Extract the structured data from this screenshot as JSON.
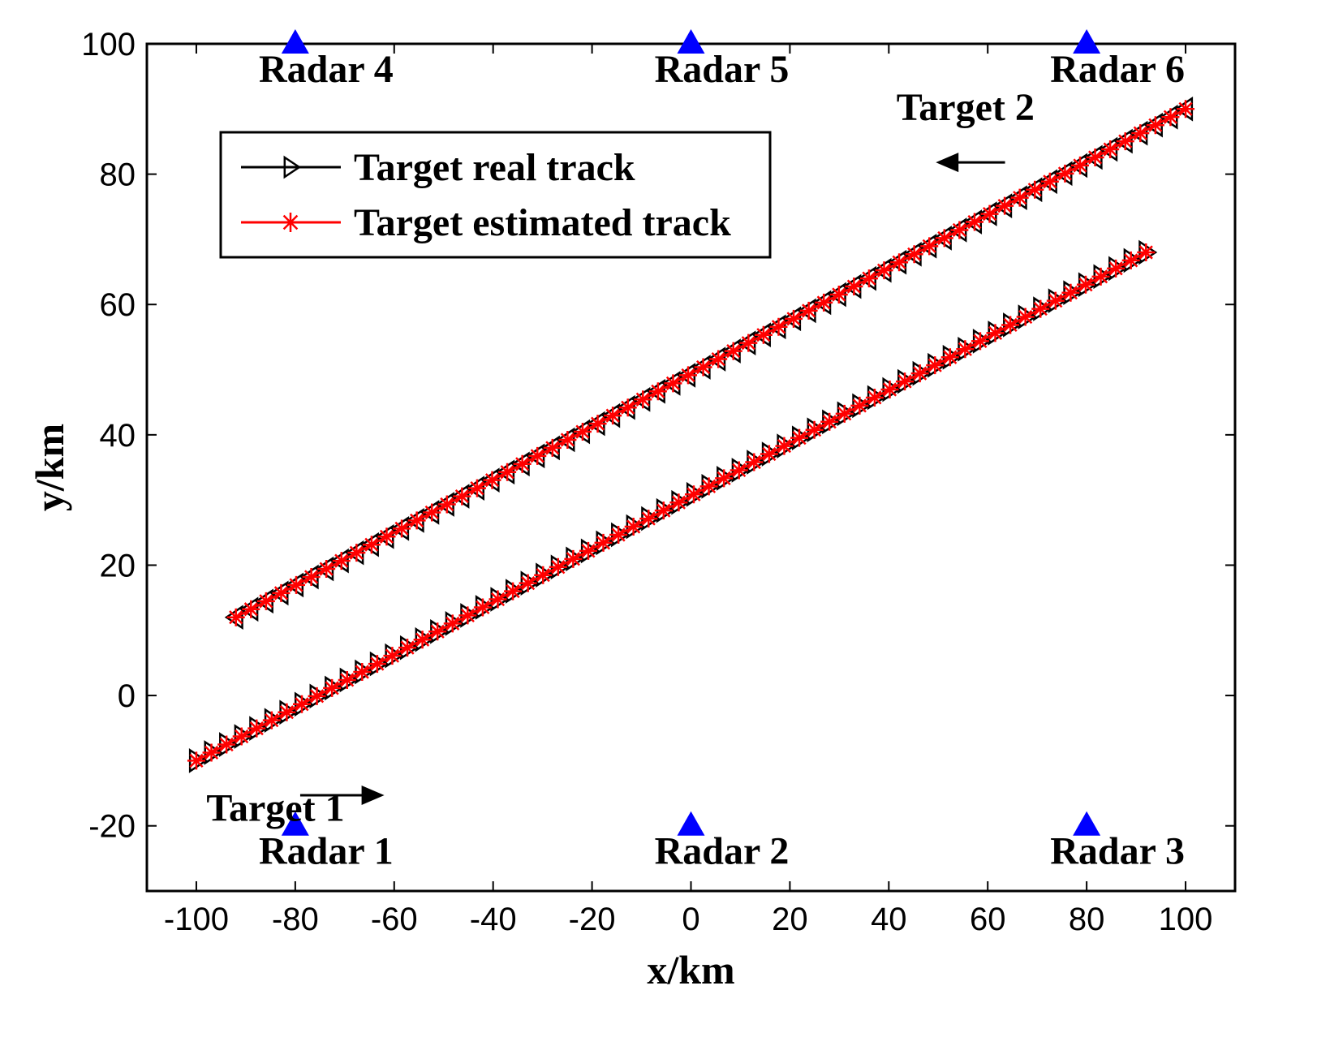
{
  "chart_data": {
    "type": "line",
    "title": "",
    "xlabel": "x/km",
    "ylabel": "y/km",
    "xlim": [
      -110,
      110
    ],
    "ylim": [
      -30,
      100
    ],
    "xticks": [
      -100,
      -80,
      -60,
      -40,
      -20,
      0,
      20,
      40,
      60,
      80,
      100
    ],
    "yticks": [
      -20,
      0,
      20,
      40,
      60,
      80,
      100
    ],
    "xtick_labels": [
      "-100",
      "-80",
      "-60",
      "-40",
      "-20",
      "0",
      "20",
      "40",
      "60",
      "80",
      "100"
    ],
    "ytick_labels": [
      "-20",
      "0",
      "20",
      "40",
      "60",
      "80",
      "100"
    ],
    "grid": false,
    "legend_position": "upper-left",
    "legend": [
      {
        "label": "Target real track",
        "color": "#000000",
        "marker": "triangle-right"
      },
      {
        "label": "Target estimated track",
        "color": "#ff0000",
        "marker": "star"
      }
    ],
    "radars": [
      {
        "name": "Radar 1",
        "x": -80,
        "y": -20
      },
      {
        "name": "Radar 2",
        "x": 0,
        "y": -20
      },
      {
        "name": "Radar 3",
        "x": 80,
        "y": -20
      },
      {
        "name": "Radar 4",
        "x": -80,
        "y": 100
      },
      {
        "name": "Radar 5",
        "x": 0,
        "y": 100
      },
      {
        "name": "Radar 6",
        "x": 80,
        "y": 100
      }
    ],
    "radar_color": "#0000ff",
    "targets": [
      {
        "name": "Target 1",
        "x_start": -100,
        "y_start": -10,
        "x_end": 92,
        "y_end": 68,
        "direction": "right"
      },
      {
        "name": "Target 2",
        "x_start": 100,
        "y_start": 90,
        "x_end": -92,
        "y_end": 12,
        "direction": "left"
      }
    ],
    "series": [
      {
        "name": "Target real track",
        "color": "#000000",
        "track": "Target 1",
        "x": [
          -100,
          92
        ],
        "y": [
          -10,
          68
        ]
      },
      {
        "name": "Target estimated track",
        "color": "#ff0000",
        "track": "Target 1",
        "x": [
          -100,
          92
        ],
        "y": [
          -10,
          68
        ]
      },
      {
        "name": "Target real track",
        "color": "#000000",
        "track": "Target 2",
        "x": [
          100,
          -92
        ],
        "y": [
          90,
          12
        ]
      },
      {
        "name": "Target estimated track",
        "color": "#ff0000",
        "track": "Target 2",
        "x": [
          100,
          -92
        ],
        "y": [
          90,
          12
        ]
      }
    ],
    "marker_count": 64
  }
}
